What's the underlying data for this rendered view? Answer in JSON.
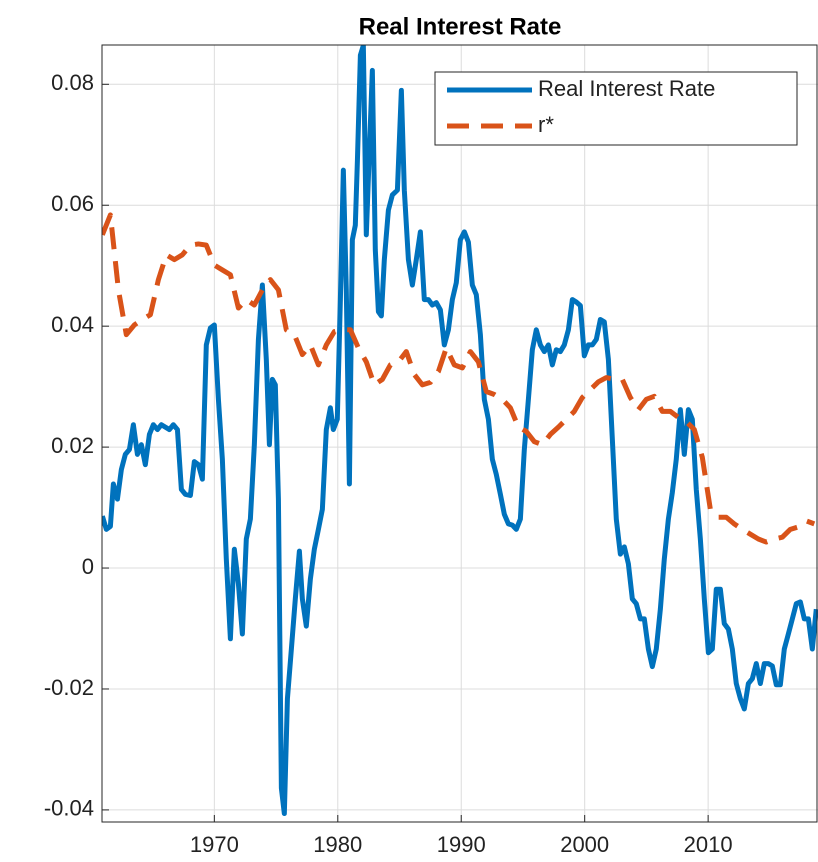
{
  "chart_data": {
    "type": "line",
    "title": "Real Interest Rate",
    "xlim": [
      1960.9,
      2018.9
    ],
    "xticks": [
      1970,
      1980,
      1990,
      2000,
      2010
    ],
    "ylim": [
      -0.042,
      0.0865
    ],
    "yticks": [
      -0.04,
      -0.02,
      0,
      0.02,
      0.04,
      0.06,
      0.08
    ],
    "grid": true,
    "legend": "northeast",
    "series": [
      {
        "name": "Real Interest Rate",
        "color": "#0072bd",
        "dash": "solid",
        "x": [
          1960.93,
          1961.25,
          1961.58,
          1961.82,
          1962.15,
          1962.47,
          1962.79,
          1963.12,
          1963.44,
          1963.77,
          1964.09,
          1964.41,
          1964.74,
          1965.06,
          1965.39,
          1965.71,
          1966.03,
          1966.36,
          1966.68,
          1967.01,
          1967.33,
          1967.65,
          1968.06,
          1968.38,
          1968.71,
          1969.03,
          1969.35,
          1969.68,
          1970.0,
          1970.33,
          1970.65,
          1970.97,
          1971.3,
          1971.62,
          1971.95,
          1972.27,
          1972.59,
          1972.92,
          1973.24,
          1973.57,
          1973.89,
          1974.21,
          1974.46,
          1974.7,
          1974.94,
          1975.19,
          1975.43,
          1975.67,
          1975.92,
          1976.24,
          1976.56,
          1976.89,
          1977.13,
          1977.45,
          1977.78,
          1978.1,
          1978.43,
          1978.75,
          1979.07,
          1979.4,
          1979.64,
          1979.96,
          1980.21,
          1980.45,
          1980.69,
          1980.94,
          1981.18,
          1981.42,
          1981.59,
          1981.83,
          1982.07,
          1982.31,
          1982.56,
          1982.8,
          1983.04,
          1983.29,
          1983.53,
          1983.77,
          1984.1,
          1984.42,
          1984.83,
          1985.15,
          1985.39,
          1985.72,
          1986.04,
          1986.36,
          1986.69,
          1987.01,
          1987.34,
          1987.66,
          1987.98,
          1988.31,
          1988.63,
          1988.96,
          1989.28,
          1989.6,
          1989.93,
          1990.25,
          1990.58,
          1990.9,
          1991.22,
          1991.55,
          1991.87,
          1992.2,
          1992.52,
          1992.84,
          1993.17,
          1993.49,
          1993.82,
          1994.14,
          1994.46,
          1994.79,
          1995.11,
          1995.44,
          1995.76,
          1996.08,
          1996.41,
          1996.73,
          1997.06,
          1997.38,
          1997.7,
          1998.03,
          1998.35,
          1998.68,
          1999.0,
          1999.32,
          1999.65,
          1999.97,
          2000.3,
          2000.62,
          2000.94,
          2001.27,
          2001.59,
          2001.92,
          2002.24,
          2002.56,
          2002.89,
          2003.21,
          2003.54,
          2003.86,
          2004.18,
          2004.51,
          2004.83,
          2005.16,
          2005.48,
          2005.8,
          2006.13,
          2006.45,
          2006.78,
          2007.1,
          2007.42,
          2007.75,
          2008.07,
          2008.4,
          2008.72,
          2009.04,
          2009.37,
          2009.69,
          2010.02,
          2010.34,
          2010.66,
          2010.99,
          2011.31,
          2011.64,
          2011.96,
          2012.28,
          2012.61,
          2012.93,
          2013.26,
          2013.58,
          2013.9,
          2014.23,
          2014.55,
          2014.88,
          2015.2,
          2015.52,
          2015.85,
          2016.17,
          2016.5,
          2016.82,
          2017.14,
          2017.47,
          2017.79,
          2018.12,
          2018.44,
          2018.76
        ],
        "values": [
          0.0086,
          0.0064,
          0.0069,
          0.0139,
          0.0114,
          0.0163,
          0.0188,
          0.0196,
          0.0237,
          0.0188,
          0.0204,
          0.0171,
          0.0221,
          0.0237,
          0.0229,
          0.0237,
          0.0233,
          0.0229,
          0.0237,
          0.0229,
          0.013,
          0.0122,
          0.012,
          0.0176,
          0.0171,
          0.0147,
          0.0369,
          0.0397,
          0.0402,
          0.0279,
          0.018,
          0.0015,
          -0.0117,
          0.0031,
          -0.0026,
          -0.0109,
          0.0048,
          0.0081,
          0.0204,
          0.0378,
          0.0468,
          0.0345,
          0.0204,
          0.0312,
          0.0303,
          0.0114,
          -0.0364,
          -0.0406,
          -0.0216,
          -0.0134,
          -0.0051,
          0.0028,
          -0.0051,
          -0.0096,
          -0.0018,
          0.0031,
          0.0064,
          0.0097,
          0.0229,
          0.0265,
          0.0229,
          0.0246,
          0.0444,
          0.0658,
          0.046,
          0.0139,
          0.0543,
          0.0567,
          0.0674,
          0.0848,
          0.0864,
          0.0551,
          0.0691,
          0.0823,
          0.0526,
          0.0424,
          0.0417,
          0.051,
          0.0592,
          0.0617,
          0.0625,
          0.079,
          0.0625,
          0.051,
          0.0468,
          0.051,
          0.0556,
          0.0444,
          0.0444,
          0.0435,
          0.0439,
          0.0427,
          0.0369,
          0.0394,
          0.0444,
          0.0472,
          0.0543,
          0.0556,
          0.0539,
          0.0468,
          0.0452,
          0.0386,
          0.0279,
          0.0246,
          0.018,
          0.0155,
          0.0122,
          0.0089,
          0.0073,
          0.0071,
          0.0064,
          0.0081,
          0.0196,
          0.0279,
          0.0361,
          0.0394,
          0.0369,
          0.0358,
          0.0369,
          0.0336,
          0.0361,
          0.0358,
          0.0369,
          0.0394,
          0.0444,
          0.044,
          0.0434,
          0.0351,
          0.0369,
          0.0369,
          0.0378,
          0.0411,
          0.0407,
          0.0345,
          0.0213,
          0.0081,
          0.0023,
          0.0035,
          0.0007,
          -0.0051,
          -0.0059,
          -0.0084,
          -0.0084,
          -0.0134,
          -0.0163,
          -0.0134,
          -0.0068,
          0.0015,
          0.0081,
          0.0125,
          0.018,
          0.0262,
          0.0188,
          0.0262,
          0.0246,
          0.013,
          0.0048,
          -0.0051,
          -0.014,
          -0.0134,
          -0.0035,
          -0.0035,
          -0.0092,
          -0.0101,
          -0.0134,
          -0.0191,
          -0.0216,
          -0.0233,
          -0.0191,
          -0.0183,
          -0.0158,
          -0.0191,
          -0.0158,
          -0.0158,
          -0.0162,
          -0.0193,
          -0.0193,
          -0.0134,
          -0.0109,
          -0.0084,
          -0.0059,
          -0.0056,
          -0.0084,
          -0.0084,
          -0.0134,
          -0.0068
        ]
      },
      {
        "name": "r*",
        "color": "#d95319",
        "dash": "dashed",
        "x": [
          1960.93,
          1961.58,
          1962.23,
          1962.87,
          1963.52,
          1964.17,
          1964.82,
          1965.47,
          1966.11,
          1966.76,
          1967.41,
          1968.06,
          1968.71,
          1969.35,
          1970.0,
          1970.65,
          1971.3,
          1971.95,
          1972.59,
          1973.24,
          1973.89,
          1974.54,
          1975.19,
          1975.83,
          1976.48,
          1977.13,
          1977.78,
          1978.43,
          1979.07,
          1979.72,
          1980.37,
          1981.02,
          1981.67,
          1982.31,
          1982.96,
          1983.61,
          1984.26,
          1984.91,
          1985.55,
          1986.2,
          1986.85,
          1987.5,
          1988.15,
          1988.79,
          1989.44,
          1990.09,
          1990.74,
          1991.39,
          1992.03,
          1992.68,
          1993.33,
          1993.98,
          1994.63,
          1995.27,
          1995.92,
          1996.57,
          1997.22,
          1997.87,
          1998.51,
          1999.16,
          1999.81,
          2000.46,
          2001.11,
          2001.75,
          2002.4,
          2003.05,
          2003.7,
          2004.35,
          2004.99,
          2005.64,
          2006.29,
          2006.94,
          2007.59,
          2008.23,
          2008.88,
          2009.53,
          2010.18,
          2010.83,
          2011.47,
          2012.12,
          2012.77,
          2013.42,
          2014.07,
          2014.71,
          2015.36,
          2016.01,
          2016.66,
          2017.31,
          2017.95,
          2018.6
        ],
        "values": [
          0.0551,
          0.0584,
          0.046,
          0.0386,
          0.0402,
          0.0411,
          0.0419,
          0.0477,
          0.0518,
          0.051,
          0.0518,
          0.0534,
          0.0536,
          0.0534,
          0.0501,
          0.0493,
          0.0485,
          0.043,
          0.0444,
          0.0435,
          0.046,
          0.0477,
          0.046,
          0.0394,
          0.0386,
          0.0353,
          0.0369,
          0.0336,
          0.0369,
          0.0391,
          0.0394,
          0.0394,
          0.0364,
          0.0341,
          0.0303,
          0.0312,
          0.0336,
          0.0341,
          0.0358,
          0.032,
          0.0303,
          0.0307,
          0.0325,
          0.0364,
          0.0336,
          0.0331,
          0.0358,
          0.0341,
          0.0292,
          0.0287,
          0.0279,
          0.0265,
          0.0233,
          0.0226,
          0.0209,
          0.0204,
          0.0221,
          0.0233,
          0.0246,
          0.0259,
          0.0282,
          0.0295,
          0.0308,
          0.0315,
          0.0312,
          0.0312,
          0.0282,
          0.0262,
          0.0279,
          0.0284,
          0.0259,
          0.0259,
          0.0249,
          0.0242,
          0.0229,
          0.0183,
          0.0097,
          0.0084,
          0.0084,
          0.0073,
          0.0064,
          0.0056,
          0.0048,
          0.0043,
          0.0048,
          0.0051,
          0.0064,
          0.0068,
          0.0078,
          0.0073
        ]
      }
    ]
  }
}
